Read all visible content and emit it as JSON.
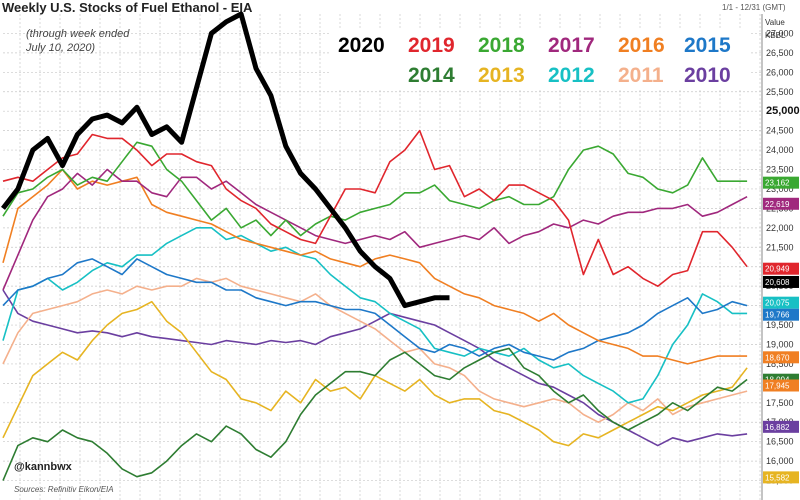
{
  "chart_data": {
    "type": "line",
    "title": "Weekly U.S. Stocks of Fuel Ethanol - EIA",
    "subtitle": "(through week ended July 10, 2020)",
    "date_range": "1/1 - 12/31 (GMT)",
    "ylabel_line1": "Value",
    "ylabel_line2": "KBBL",
    "ylim": [
      15000,
      27500
    ],
    "yticks": [
      15500,
      16000,
      16500,
      17000,
      17500,
      18000,
      18500,
      19000,
      19500,
      20000,
      20500,
      21000,
      21500,
      22000,
      22500,
      23000,
      23500,
      24000,
      24500,
      25000,
      25500,
      26000,
      26500,
      27000
    ],
    "ytick_labels": [
      "15,500",
      "16,000",
      "16,500",
      "17,000",
      "17,500",
      "18,000",
      "18,500",
      "19,000",
      "19,500",
      "20,000",
      "20,500",
      "21,000",
      "21,500",
      "22,000",
      "22,500",
      "23,000",
      "23,500",
      "24,000",
      "24,500",
      "25,000",
      "25,500",
      "26,000",
      "26,500",
      "27,000"
    ],
    "highlight_tick": "25,000",
    "grid": true,
    "legend_placement": "top-right",
    "series": [
      {
        "name": "2010",
        "color": "#6b3fa0",
        "values": [
          20400,
          19800,
          19600,
          19500,
          19400,
          19300,
          19350,
          19300,
          19200,
          19300,
          19200,
          19150,
          19100,
          19050,
          19000,
          19100,
          19050,
          19000,
          19100,
          19050,
          19100,
          19000,
          19200,
          19300,
          19400,
          19600,
          19800,
          19700,
          19600,
          19500,
          19300,
          19100,
          18900,
          18600,
          18400,
          18200,
          18000,
          17900,
          17700,
          17500,
          17200,
          17000,
          16800,
          16600,
          16400,
          16600,
          16500,
          16600,
          16700,
          16650,
          16700
        ]
      },
      {
        "name": "2011",
        "color": "#f4b08c",
        "values": [
          18500,
          19300,
          19800,
          19900,
          20000,
          20100,
          20300,
          20400,
          20300,
          20500,
          20400,
          20500,
          20500,
          20700,
          20600,
          20700,
          20500,
          20400,
          20300,
          20200,
          20100,
          20300,
          20000,
          19800,
          19600,
          19400,
          19100,
          18800,
          18900,
          18500,
          18400,
          18200,
          17800,
          17600,
          17500,
          17400,
          17500,
          17600,
          17500,
          17200,
          17000,
          17200,
          17500,
          17300,
          17600,
          17200,
          17400,
          17500,
          17600,
          17700,
          17800
        ]
      },
      {
        "name": "2012",
        "color": "#17c0c4",
        "values": [
          19100,
          20400,
          20500,
          20700,
          20400,
          20600,
          20900,
          21100,
          21000,
          21300,
          21300,
          21600,
          21800,
          22000,
          22000,
          21700,
          21800,
          21600,
          21400,
          21500,
          21300,
          21200,
          20800,
          20500,
          20200,
          20100,
          19800,
          19600,
          19400,
          18900,
          18800,
          18700,
          18900,
          18800,
          18700,
          18900,
          18600,
          18400,
          18500,
          18200,
          18000,
          17800,
          17500,
          17600,
          18200,
          19000,
          19500,
          20300,
          20100,
          19800,
          19800
        ]
      },
      {
        "name": "2013",
        "color": "#e6b422",
        "values": [
          16600,
          17400,
          18200,
          18500,
          18800,
          18600,
          19100,
          19500,
          19800,
          19900,
          20100,
          19600,
          19300,
          18800,
          18300,
          18100,
          17600,
          17500,
          17300,
          17800,
          17500,
          18100,
          17800,
          17900,
          17600,
          18200,
          18000,
          17800,
          18100,
          17700,
          17500,
          17600,
          17600,
          17300,
          17200,
          17000,
          16800,
          16500,
          16400,
          16700,
          16600,
          16800,
          17000,
          17200,
          17400,
          17300,
          17500,
          17700,
          17800,
          17900,
          18400
        ]
      },
      {
        "name": "2014",
        "color": "#2e7d32",
        "values": [
          15500,
          16400,
          16600,
          16500,
          16800,
          16600,
          16500,
          16200,
          15800,
          15600,
          15700,
          16000,
          16400,
          16700,
          16500,
          16900,
          16700,
          16300,
          16100,
          16500,
          17200,
          17700,
          18000,
          18300,
          18300,
          18200,
          18600,
          18800,
          18500,
          18200,
          18100,
          18400,
          18600,
          18800,
          18900,
          18400,
          18200,
          17800,
          17500,
          17700,
          17300,
          17000,
          16800,
          17000,
          17200,
          17500,
          17300,
          17600,
          17900,
          17800,
          18100
        ]
      },
      {
        "name": "2015",
        "color": "#1e78c8",
        "values": [
          20000,
          20400,
          20500,
          20700,
          20800,
          21100,
          21200,
          21000,
          20800,
          21200,
          21000,
          20800,
          20700,
          20600,
          20600,
          20400,
          20400,
          20200,
          20100,
          20000,
          20100,
          20100,
          20000,
          19900,
          19900,
          19800,
          19500,
          19200,
          18900,
          18800,
          19000,
          18900,
          18700,
          18900,
          19000,
          18800,
          18700,
          18600,
          18800,
          18900,
          19100,
          19200,
          19300,
          19500,
          19800,
          20000,
          20200,
          19800,
          19900,
          20100,
          20000
        ]
      },
      {
        "name": "2016",
        "color": "#f07f22",
        "values": [
          21100,
          22500,
          22800,
          23100,
          23500,
          23000,
          23200,
          23100,
          23200,
          23300,
          22600,
          22400,
          22300,
          22200,
          22100,
          21900,
          21700,
          21600,
          21500,
          21400,
          21300,
          21400,
          21200,
          21100,
          21000,
          21200,
          21300,
          21200,
          21100,
          20700,
          20500,
          20300,
          20200,
          20000,
          19900,
          19800,
          19600,
          19800,
          19500,
          19300,
          19100,
          19000,
          18900,
          18700,
          18700,
          18600,
          18500,
          18600,
          18700,
          18700,
          18700
        ]
      },
      {
        "name": "2017",
        "color": "#a0287d",
        "values": [
          20400,
          21300,
          22200,
          22800,
          23000,
          23400,
          23100,
          23500,
          23200,
          23200,
          22900,
          22800,
          23300,
          23300,
          23000,
          23200,
          22900,
          22600,
          22400,
          22200,
          22000,
          21800,
          21700,
          21600,
          21700,
          21800,
          21700,
          21900,
          21500,
          21600,
          21700,
          21800,
          21700,
          22000,
          21600,
          21800,
          21900,
          22100,
          22000,
          22200,
          22100,
          22300,
          22400,
          22400,
          22500,
          22500,
          22600,
          22300,
          22400,
          22600,
          22800
        ]
      },
      {
        "name": "2018",
        "color": "#3aa832",
        "values": [
          22300,
          22900,
          23000,
          23300,
          23500,
          23100,
          23300,
          23200,
          23700,
          24200,
          24100,
          23500,
          23200,
          22700,
          22200,
          22500,
          22000,
          22200,
          21800,
          22200,
          21800,
          22100,
          22300,
          22200,
          22400,
          22500,
          22600,
          22900,
          22900,
          23100,
          22700,
          22600,
          22500,
          22700,
          22800,
          22600,
          22600,
          22800,
          23500,
          24000,
          24100,
          23900,
          23400,
          23300,
          23000,
          22900,
          23100,
          23800,
          23200,
          23200,
          23200
        ]
      },
      {
        "name": "2019",
        "color": "#e0262d",
        "values": [
          23200,
          23300,
          23200,
          23500,
          23800,
          23900,
          24400,
          24300,
          24300,
          24000,
          23600,
          23900,
          23900,
          23700,
          23600,
          23000,
          22700,
          22500,
          22100,
          21900,
          21700,
          21600,
          22300,
          23000,
          23000,
          22900,
          23700,
          24000,
          24500,
          23500,
          23600,
          22800,
          23000,
          22700,
          23100,
          23100,
          22900,
          22700,
          22200,
          20800,
          21700,
          20800,
          21000,
          20700,
          20500,
          20800,
          20900,
          21900,
          21900,
          21500,
          21000
        ]
      },
      {
        "name": "2020",
        "color": "#000000",
        "values": [
          22500,
          23000,
          24000,
          24300,
          23600,
          24400,
          24800,
          24900,
          24700,
          25100,
          24400,
          24600,
          24200,
          25600,
          27000,
          27300,
          27500,
          26100,
          25400,
          24100,
          23400,
          23000,
          22500,
          22000,
          21400,
          21000,
          20700,
          20000,
          20100,
          20200,
          20200
        ]
      }
    ],
    "end_labels": [
      {
        "text": "23,162",
        "color": "#3aa832",
        "value": 23162
      },
      {
        "text": "22,619",
        "color": "#a0287d",
        "value": 22619
      },
      {
        "text": "20,949",
        "color": "#e0262d",
        "value": 20949
      },
      {
        "text": "20,608",
        "color": "#000000",
        "value": 20608
      },
      {
        "text": "20,075",
        "color": "#17c0c4",
        "value": 20075
      },
      {
        "text": "19,766",
        "color": "#1e78c8",
        "value": 19766
      },
      {
        "text": "18,670",
        "color": "#f07f22",
        "value": 18670
      },
      {
        "text": "18,094",
        "color": "#2e7d32",
        "value": 18094
      },
      {
        "text": "17,945",
        "color": "#f07f22",
        "value": 17945
      },
      {
        "text": "16,882",
        "color": "#6b3fa0",
        "value": 16882
      },
      {
        "text": "15,582",
        "color": "#e6b422",
        "value": 15582
      }
    ]
  },
  "legend": {
    "row1": [
      {
        "label": "2020",
        "color": "#000000"
      },
      {
        "label": "2019",
        "color": "#e0262d"
      },
      {
        "label": "2018",
        "color": "#3aa832"
      },
      {
        "label": "2017",
        "color": "#a0287d"
      },
      {
        "label": "2016",
        "color": "#f07f22"
      },
      {
        "label": "2015",
        "color": "#1e78c8"
      }
    ],
    "row2": [
      {
        "label": "2014",
        "color": "#2e7d32"
      },
      {
        "label": "2013",
        "color": "#e6b422"
      },
      {
        "label": "2012",
        "color": "#17c0c4"
      },
      {
        "label": "2011",
        "color": "#f4b08c"
      },
      {
        "label": "2010",
        "color": "#6b3fa0"
      }
    ]
  },
  "handle": "@kannbwx",
  "source": "Sources: Refinitiv Eikon/EIA"
}
